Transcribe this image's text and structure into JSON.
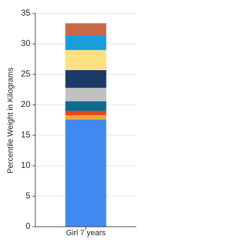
{
  "chart_data": {
    "type": "stacked_bar",
    "ylabel": "Percentile Weight in Kilograms",
    "categories": [
      "Girl 7 years"
    ],
    "series": [
      {
        "color": "#4189f0",
        "values": [
          17.6
        ]
      },
      {
        "color": "#f4a53a",
        "values": [
          0.7
        ]
      },
      {
        "color": "#e0461a",
        "values": [
          0.7
        ]
      },
      {
        "color": "#0e6b8e",
        "values": [
          1.6
        ]
      },
      {
        "color": "#c0c0c0",
        "values": [
          2.2
        ]
      },
      {
        "color": "#1b3a66",
        "values": [
          2.9
        ]
      },
      {
        "color": "#fde183",
        "values": [
          3.3
        ]
      },
      {
        "color": "#1a9ddb",
        "values": [
          2.4
        ]
      },
      {
        "color": "#c8694a",
        "values": [
          2.0
        ]
      }
    ],
    "ylim": [
      0,
      35
    ],
    "yticks": [
      0,
      5,
      10,
      15,
      20,
      25,
      30,
      35
    ],
    "grid": true
  }
}
